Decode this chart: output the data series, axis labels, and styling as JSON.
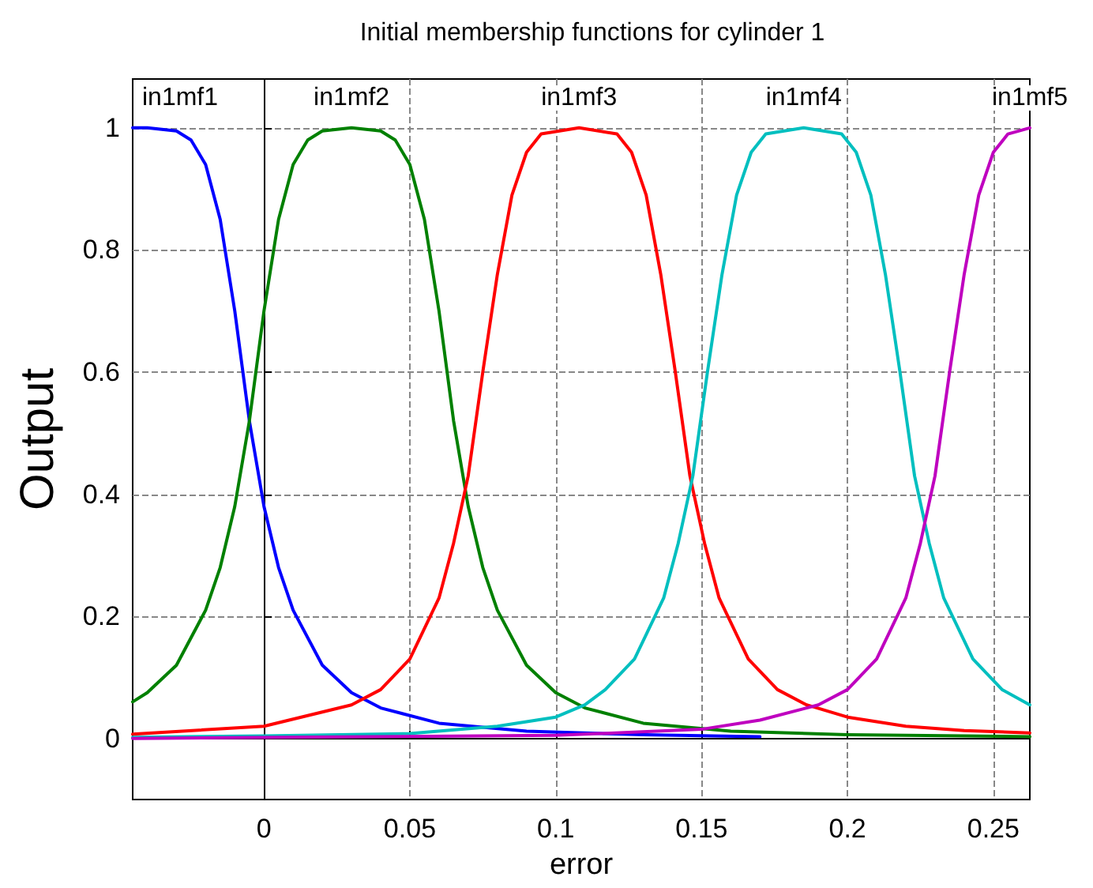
{
  "chart_data": {
    "type": "line",
    "title": "Initial membership functions for cylinder 1",
    "xlabel": "error",
    "ylabel": "Output",
    "xlim": [
      -0.045,
      0.2625
    ],
    "ylim": [
      -0.1,
      1.08
    ],
    "xticks": [
      0,
      0.05,
      0.1,
      0.15,
      0.2,
      0.25
    ],
    "yticks": [
      0,
      0.2,
      0.4,
      0.6,
      0.8,
      1
    ],
    "grid": true,
    "marker": "none",
    "line_style": "solid",
    "annotations": [
      "in1mf1",
      "in1mf2",
      "in1mf3",
      "in1mf4",
      "in1mf5"
    ],
    "series": [
      {
        "color": "#0000ff",
        "x": [
          -0.045,
          -0.04,
          -0.03,
          -0.025,
          -0.02,
          -0.015,
          -0.01,
          -0.005,
          0,
          0.005,
          0.01,
          0.02,
          0.03,
          0.04,
          0.06,
          0.09,
          0.13,
          0.17
        ],
        "values": [
          1,
          1,
          0.995,
          0.98,
          0.94,
          0.85,
          0.7,
          0.52,
          0.38,
          0.28,
          0.21,
          0.12,
          0.075,
          0.05,
          0.025,
          0.012,
          0.006,
          0.003
        ]
      },
      {
        "color": "#008000",
        "x": [
          -0.045,
          -0.04,
          -0.03,
          -0.02,
          -0.015,
          -0.01,
          -0.005,
          0,
          0.005,
          0.01,
          0.015,
          0.02,
          0.03,
          0.04,
          0.045,
          0.05,
          0.055,
          0.06,
          0.065,
          0.07,
          0.075,
          0.08,
          0.09,
          0.1,
          0.11,
          0.13,
          0.16,
          0.2,
          0.2625
        ],
        "values": [
          0.06,
          0.075,
          0.12,
          0.21,
          0.28,
          0.38,
          0.52,
          0.7,
          0.85,
          0.94,
          0.98,
          0.995,
          1,
          0.995,
          0.98,
          0.94,
          0.85,
          0.7,
          0.52,
          0.38,
          0.28,
          0.21,
          0.12,
          0.075,
          0.05,
          0.025,
          0.012,
          0.006,
          0.003
        ]
      },
      {
        "color": "#ff0000",
        "x": [
          -0.045,
          0,
          0.03,
          0.04,
          0.05,
          0.06,
          0.065,
          0.07,
          0.075,
          0.08,
          0.085,
          0.09,
          0.095,
          0.108,
          0.121,
          0.126,
          0.131,
          0.136,
          0.141,
          0.146,
          0.151,
          0.156,
          0.166,
          0.176,
          0.186,
          0.2,
          0.22,
          0.24,
          0.2625
        ],
        "values": [
          0.007,
          0.02,
          0.055,
          0.08,
          0.13,
          0.23,
          0.32,
          0.43,
          0.6,
          0.76,
          0.89,
          0.96,
          0.99,
          1,
          0.99,
          0.96,
          0.89,
          0.76,
          0.6,
          0.43,
          0.32,
          0.23,
          0.13,
          0.08,
          0.055,
          0.035,
          0.02,
          0.013,
          0.009
        ]
      },
      {
        "color": "#00bfbf",
        "x": [
          -0.045,
          0,
          0.05,
          0.08,
          0.1,
          0.11,
          0.117,
          0.127,
          0.137,
          0.142,
          0.147,
          0.152,
          0.157,
          0.162,
          0.167,
          0.172,
          0.185,
          0.198,
          0.203,
          0.208,
          0.213,
          0.218,
          0.223,
          0.228,
          0.233,
          0.243,
          0.253,
          0.2625
        ],
        "values": [
          0.002,
          0.004,
          0.008,
          0.02,
          0.035,
          0.055,
          0.08,
          0.13,
          0.23,
          0.32,
          0.43,
          0.6,
          0.76,
          0.89,
          0.96,
          0.99,
          1,
          0.99,
          0.96,
          0.89,
          0.76,
          0.6,
          0.43,
          0.32,
          0.23,
          0.13,
          0.08,
          0.055
        ]
      },
      {
        "color": "#bf00bf",
        "x": [
          -0.045,
          0.1,
          0.15,
          0.17,
          0.19,
          0.2,
          0.21,
          0.22,
          0.225,
          0.23,
          0.235,
          0.24,
          0.245,
          0.25,
          0.255,
          0.2625
        ],
        "values": [
          0,
          0.005,
          0.015,
          0.03,
          0.055,
          0.08,
          0.13,
          0.23,
          0.32,
          0.43,
          0.6,
          0.76,
          0.89,
          0.96,
          0.99,
          1
        ]
      }
    ]
  }
}
